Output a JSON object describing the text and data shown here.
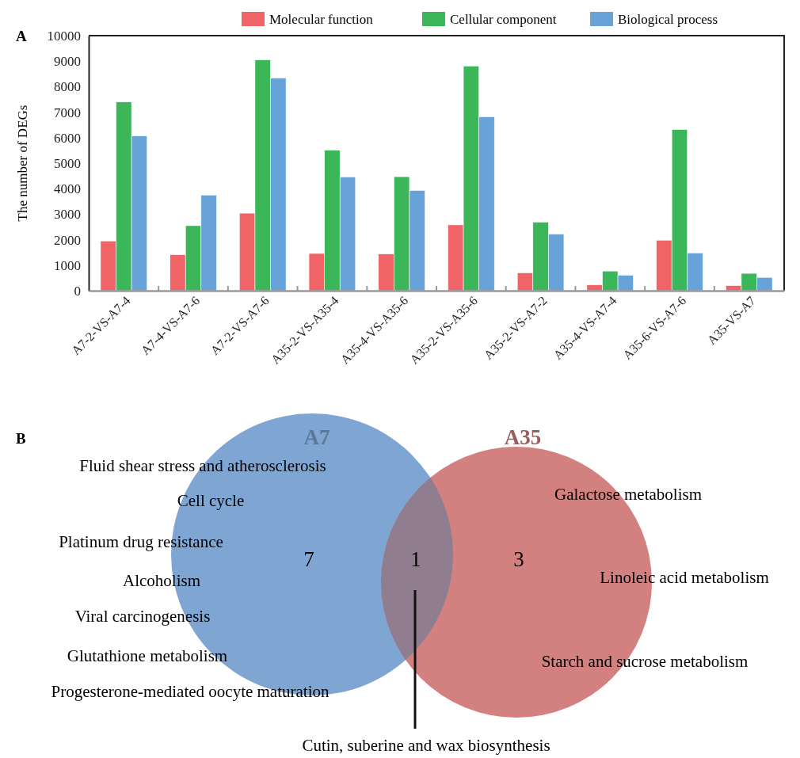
{
  "chart_data": [
    {
      "type": "bar",
      "title": "A",
      "ylabel": "The number of DEGs",
      "categories": [
        "A7-2-VS-A7-4",
        "A7-4-VS-A7-6",
        "A7-2-VS-A7-6",
        "A35-2-VS-A35-4",
        "A35-4-VS-A35-6",
        "A35-2-VS-A35-6",
        "A35-2-VS-A7-2",
        "A35-4-VS-A7-4",
        "A35-6-VS-A7-6",
        "A35-VS-A7"
      ],
      "series": [
        {
          "name": "Molecular function",
          "color": "#f06366",
          "values": [
            1950,
            1410,
            3040,
            1460,
            1440,
            2580,
            700,
            230,
            1980,
            200
          ]
        },
        {
          "name": "Cellular component",
          "color": "#3bb75a",
          "values": [
            7400,
            2550,
            9050,
            5510,
            4470,
            8810,
            2690,
            770,
            6320,
            680
          ]
        },
        {
          "name": "Biological process",
          "color": "#67a2d8",
          "values": [
            6070,
            3750,
            8340,
            4460,
            3930,
            6820,
            2220,
            610,
            1480,
            520
          ]
        }
      ],
      "ylim": [
        0,
        10000
      ],
      "yticks": [
        0,
        1000,
        2000,
        3000,
        4000,
        5000,
        6000,
        7000,
        8000,
        9000,
        10000
      ],
      "grid": false,
      "legend": "top"
    },
    {
      "type": "other",
      "title": "B",
      "categories": [
        "A7",
        "A35"
      ],
      "values": [
        7,
        3
      ],
      "data_labels": true,
      "colors": [
        "#7fa5d2",
        "#d38080"
      ],
      "annotations": [
        "Fluid shear stress and atherosclerosis",
        "Cell cycle",
        "Platinum drug resistance",
        "Alcoholism",
        "Viral carcinogenesis",
        "Glutathione metabolism",
        "Progesterone-mediated oocyte maturation",
        "Galactose metabolism",
        "Linoleic acid metabolism",
        "Starch and sucrose metabolism",
        "1",
        "Cutin, suberine and wax biosynthesis"
      ]
    }
  ]
}
